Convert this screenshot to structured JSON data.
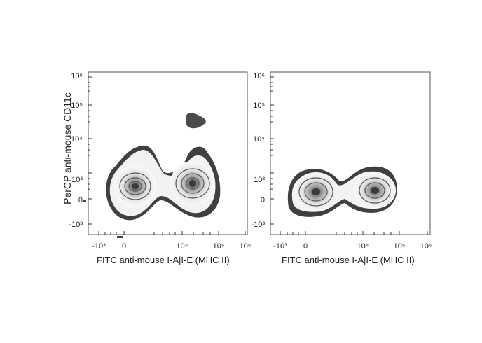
{
  "ylabel": "PerCP anti-mouse CD11c",
  "chart_data": [
    {
      "type": "contour",
      "title": "",
      "xlabel": "FITC anti-mouse I-A|I-E (MHC II)",
      "ylabel": "PerCP anti-mouse CD11c",
      "x_ticks": [
        "-10³",
        "0",
        "10⁴",
        "10⁵",
        "10⁶"
      ],
      "y_ticks": [
        "-10³",
        "0",
        "10³",
        "10⁴",
        "10⁵",
        "10⁶"
      ],
      "populations": [
        {
          "name": "",
          "x_center": "≈10² (near 0)",
          "y_center": "≈10² (near 0)",
          "peak_density": "high"
        },
        {
          "name": "",
          "x_center": "≈3×10⁴",
          "y_center": "≈5×10²",
          "peak_density": "high"
        },
        {
          "name": "",
          "x_center": "≈2×10⁴",
          "y_center": "≈3×10⁴",
          "peak_density": "low"
        }
      ]
    },
    {
      "type": "contour",
      "title": "",
      "xlabel": "FITC anti-mouse I-A|I-E (MHC II)",
      "ylabel": "",
      "x_ticks": [
        "-10³",
        "0",
        "10⁴",
        "10⁵",
        "10⁶"
      ],
      "y_ticks": [
        "-10³",
        "0",
        "10³",
        "10⁴",
        "10⁵",
        "10⁶"
      ],
      "populations": [
        {
          "name": "",
          "x_center": "≈10² (near 0)",
          "y_center": "≈10² (near 0)",
          "peak_density": "high"
        },
        {
          "name": "",
          "x_center": "≈2×10⁴",
          "y_center": "≈10² (near 0)",
          "peak_density": "high"
        }
      ]
    }
  ],
  "colors": {
    "outline": "#3f3f3f",
    "fill_light": "#f4f4f4",
    "frame": "#555555"
  }
}
